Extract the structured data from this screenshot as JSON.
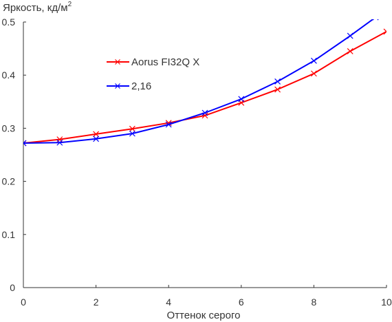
{
  "chart_data": {
    "type": "line",
    "title": "",
    "ylabel": "Яркость, кд/м",
    "ylabel_superscript": "2",
    "xlabel": "Оттенок серого",
    "xlim": [
      0,
      10
    ],
    "ylim": [
      0,
      0.5
    ],
    "x_ticks": [
      "0",
      "2",
      "4",
      "6",
      "8",
      "10"
    ],
    "y_ticks": [
      "0",
      "0.1",
      "0.2",
      "0.3",
      "0.4",
      "0.5"
    ],
    "grid": false,
    "legend_position": "upper-left",
    "series": [
      {
        "name": "Aorus FI32Q X",
        "color": "#ff0000",
        "marker": "x",
        "x": [
          0,
          1,
          2,
          3,
          4,
          5,
          6,
          7,
          8,
          9,
          10
        ],
        "y": [
          0.272,
          0.279,
          0.289,
          0.299,
          0.31,
          0.324,
          0.348,
          0.373,
          0.403,
          0.445,
          0.482
        ]
      },
      {
        "name": "2,16",
        "color": "#0000ff",
        "marker": "x",
        "x": [
          0,
          1,
          2,
          3,
          4,
          5,
          6,
          7,
          8,
          9,
          9.7
        ],
        "y": [
          0.272,
          0.273,
          0.28,
          0.29,
          0.307,
          0.329,
          0.355,
          0.388,
          0.427,
          0.474,
          0.509
        ]
      }
    ]
  }
}
